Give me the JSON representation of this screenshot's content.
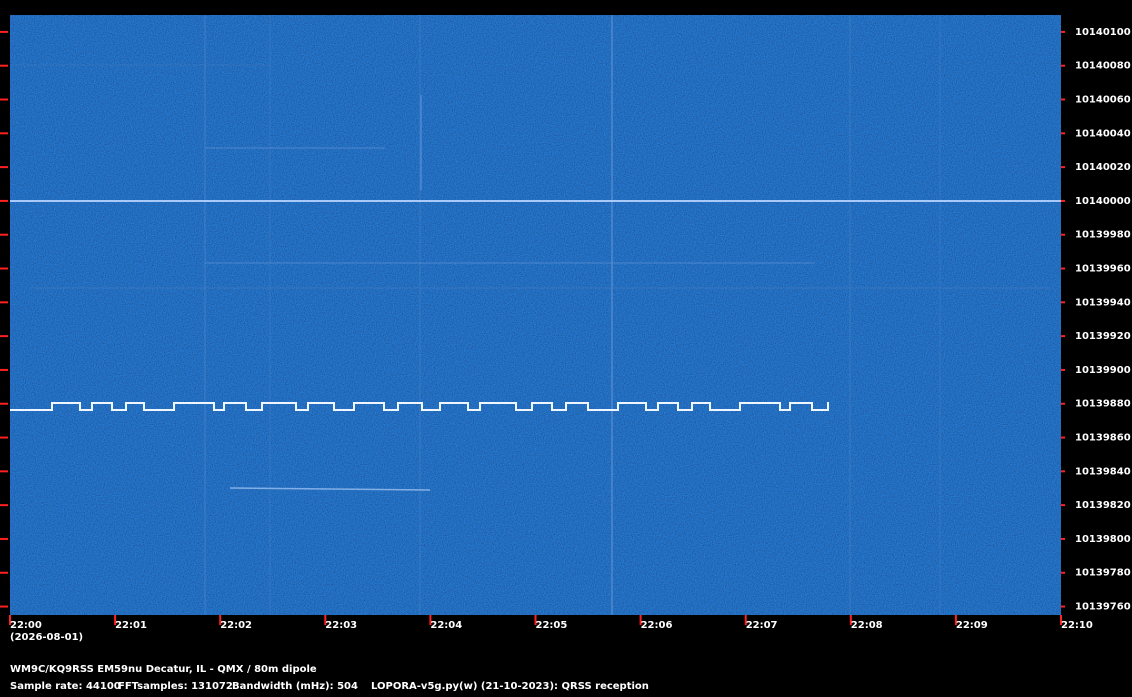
{
  "chart_data": {
    "type": "spectrogram",
    "x_labels": [
      "22:00",
      "22:01",
      "22:02",
      "22:03",
      "22:04",
      "22:05",
      "22:06",
      "22:07",
      "22:08",
      "22:09",
      "22:10"
    ],
    "date": "(2026-08-01)",
    "ylim": [
      10139755,
      10140110
    ],
    "yticks": [
      10140100,
      10140080,
      10140060,
      10140040,
      10140020,
      10140000,
      10139980,
      10139960,
      10139940,
      10139920,
      10139900,
      10139880,
      10139860,
      10139840,
      10139820,
      10139800,
      10139780,
      10139760
    ],
    "station": "WM9C/KQ9RSS EM59nu Decatur, IL - QMX / 80m dipole",
    "sample_rate": "Sample rate: 44100",
    "fft_samples": "FFTsamples: 131072",
    "bandwidth": "Bandwidth (mHz): 504",
    "software": "LOPORA-v5g.py(w) (21-10-2023): QRSS reception",
    "tick_color": "#ff2020"
  }
}
